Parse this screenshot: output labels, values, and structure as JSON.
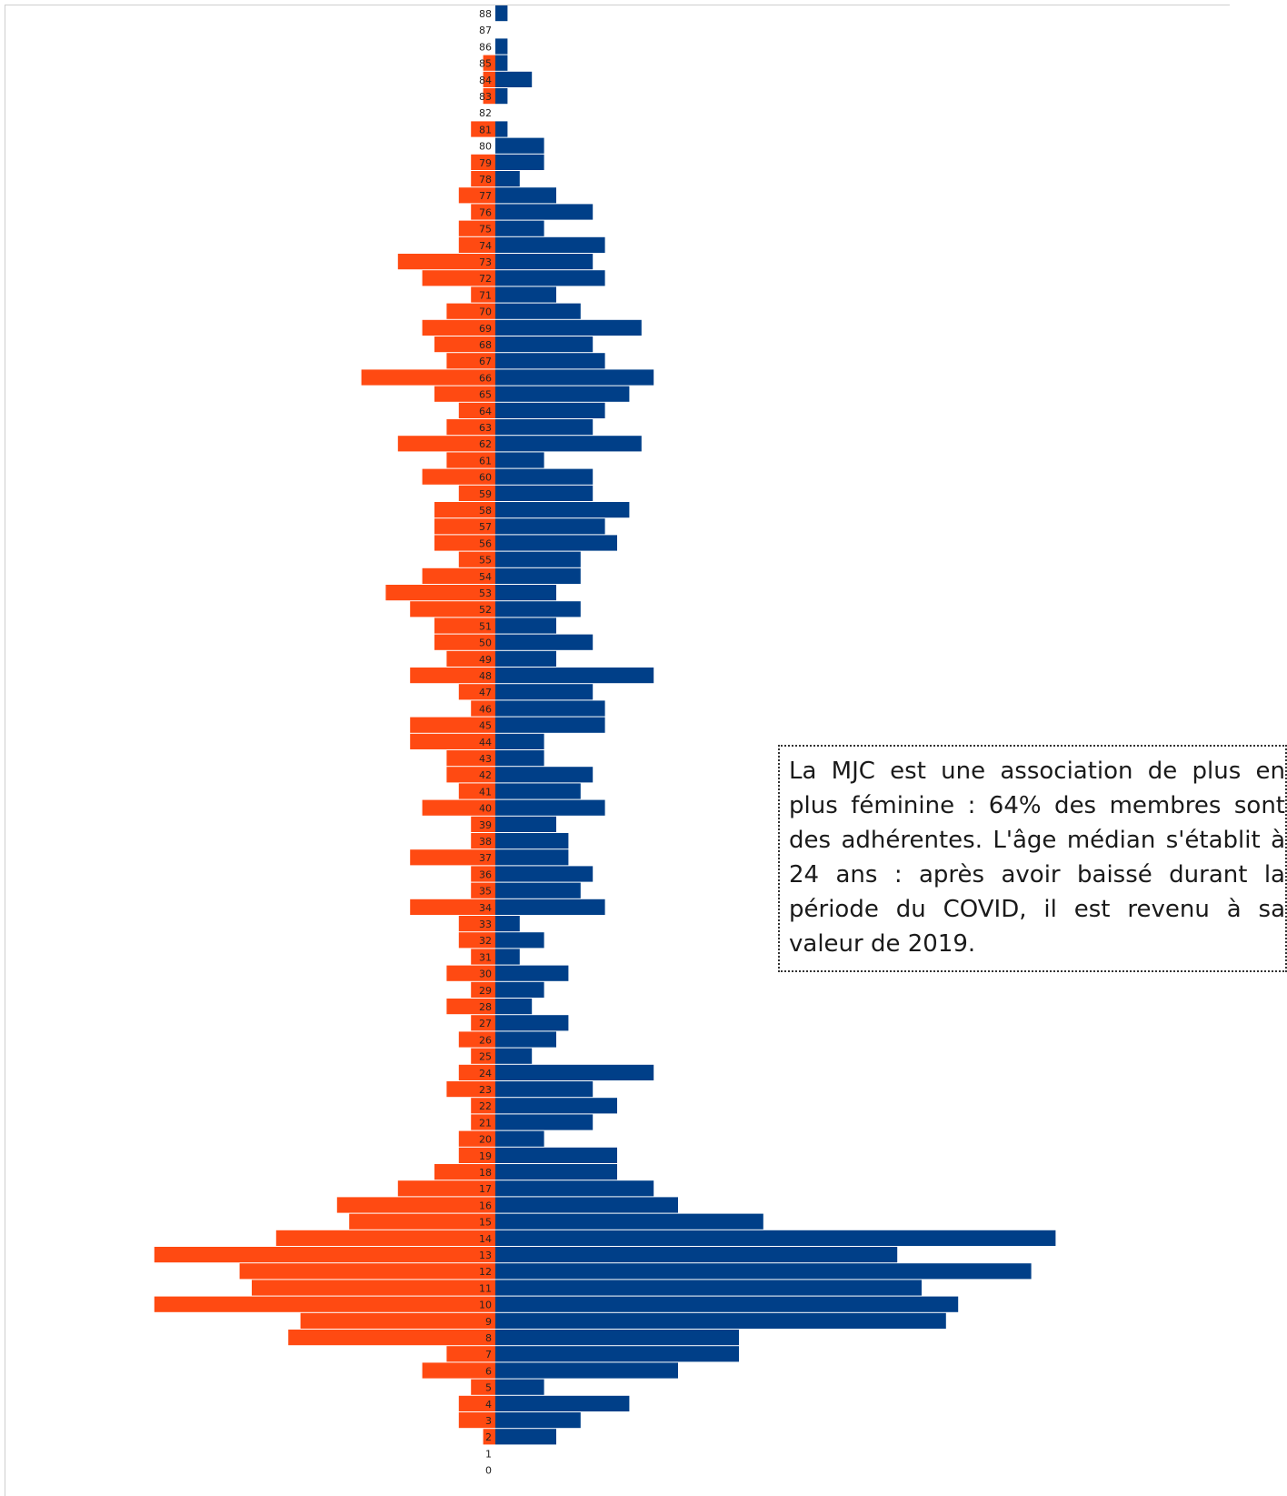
{
  "chart_data": {
    "type": "bar",
    "orientation": "horizontal-pyramid",
    "title": "",
    "xlabel": "",
    "ylabel": "",
    "ages": [
      88,
      87,
      86,
      85,
      84,
      83,
      82,
      81,
      80,
      79,
      78,
      77,
      76,
      75,
      74,
      73,
      72,
      71,
      70,
      69,
      68,
      67,
      66,
      65,
      64,
      63,
      62,
      61,
      60,
      59,
      58,
      57,
      56,
      55,
      54,
      53,
      52,
      51,
      50,
      49,
      48,
      47,
      46,
      45,
      44,
      43,
      42,
      41,
      40,
      39,
      38,
      37,
      36,
      35,
      34,
      33,
      32,
      31,
      30,
      29,
      28,
      27,
      26,
      25,
      24,
      23,
      22,
      21,
      20,
      19,
      18,
      17,
      16,
      15,
      14,
      13,
      12,
      11,
      10,
      9,
      8,
      7,
      6,
      5,
      4,
      3,
      2,
      1,
      0
    ],
    "series": [
      {
        "side": "left",
        "color": "#ff4a12",
        "values": [
          0,
          0,
          0,
          1,
          1,
          1,
          0,
          2,
          0,
          2,
          2,
          3,
          2,
          3,
          3,
          8,
          6,
          2,
          4,
          6,
          5,
          4,
          11,
          5,
          3,
          4,
          8,
          4,
          6,
          3,
          5,
          5,
          5,
          3,
          6,
          9,
          7,
          5,
          5,
          4,
          7,
          3,
          2,
          7,
          7,
          4,
          4,
          3,
          6,
          2,
          2,
          7,
          2,
          2,
          7,
          3,
          3,
          2,
          4,
          2,
          4,
          2,
          3,
          2,
          3,
          4,
          2,
          2,
          3,
          3,
          5,
          8,
          13,
          12,
          18,
          28,
          21,
          20,
          28,
          16,
          17,
          4,
          6,
          2,
          3,
          3,
          1,
          0,
          0
        ]
      },
      {
        "side": "right",
        "color": "#003f88",
        "values": [
          1,
          0,
          1,
          1,
          3,
          1,
          0,
          1,
          4,
          4,
          2,
          5,
          8,
          4,
          9,
          8,
          9,
          5,
          7,
          12,
          8,
          9,
          13,
          11,
          9,
          8,
          12,
          4,
          8,
          8,
          11,
          9,
          10,
          7,
          7,
          5,
          7,
          5,
          8,
          5,
          13,
          8,
          9,
          9,
          4,
          4,
          8,
          7,
          9,
          5,
          6,
          6,
          8,
          7,
          9,
          2,
          4,
          2,
          6,
          4,
          3,
          6,
          5,
          3,
          13,
          8,
          10,
          8,
          4,
          10,
          10,
          13,
          15,
          22,
          46,
          33,
          44,
          35,
          38,
          37,
          20,
          20,
          15,
          4,
          11,
          7,
          5,
          0,
          0
        ]
      }
    ],
    "xlim": [
      -30,
      48
    ]
  },
  "annotation": {
    "text": "La MJC est une association de plus en plus féminine : 64% des membres sont des adhérentes. L'âge médian s'établit à 24 ans : après avoir baissé durant la période du COVID, il est revenu à sa valeur de 2019."
  }
}
